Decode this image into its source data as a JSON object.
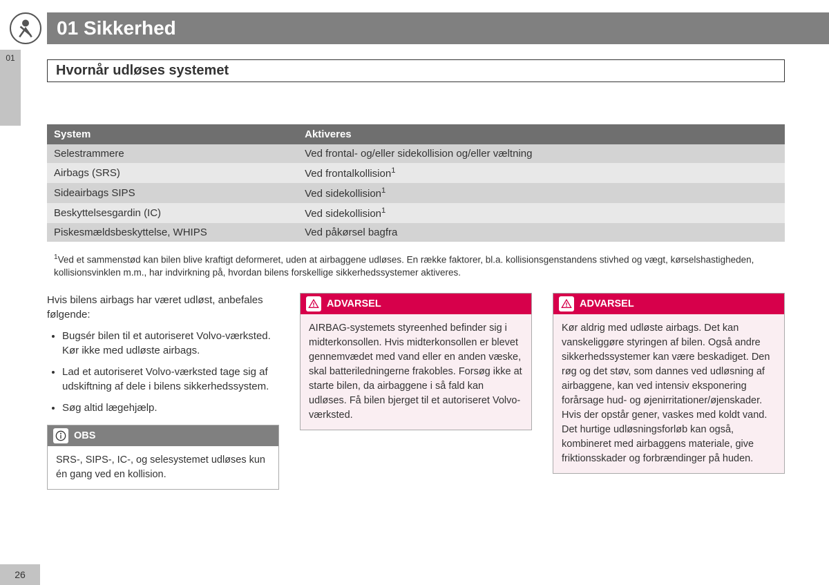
{
  "chapter": {
    "number": "01",
    "title": "Sikkerhed",
    "tab_label": "01"
  },
  "section_title": "Hvornår udløses systemet",
  "page_number": "26",
  "table": {
    "columns": [
      "System",
      "Aktiveres"
    ],
    "rows": [
      {
        "system": "Selestrammere",
        "activates": "Ved frontal- og/eller sidekollision og/eller væltning",
        "fn": false
      },
      {
        "system": "Airbags (SRS)",
        "activates": "Ved frontalkollision",
        "fn": true
      },
      {
        "system": "Sideairbags SIPS",
        "activates": "Ved sidekollision",
        "fn": true
      },
      {
        "system": "Beskyttelsesgardin (IC)",
        "activates": "Ved sidekollision",
        "fn": true
      },
      {
        "system": "Piskesmældsbeskyttelse, WHIPS",
        "activates": "Ved påkørsel bagfra",
        "fn": false
      }
    ],
    "header_bg": "#6f6f6f",
    "row_odd_bg": "#d3d3d3",
    "row_even_bg": "#e8e8e8"
  },
  "footnote": {
    "marker": "1",
    "text": "Ved et sammenstød kan bilen blive kraftigt deformeret, uden at airbaggene udløses. En række faktorer, bl.a. kollisionsgenstandens stivhed og vægt, kørselshastigheden, kollisionsvinklen m.m., har indvirkning på, hvordan bilens forskellige sikkerhedssystemer aktiveres."
  },
  "col1": {
    "intro": "Hvis bilens airbags har været udløst, anbefales følgende:",
    "bullets": [
      "Bugsér bilen til et autoriseret Volvo-værksted. Kør ikke med udløste airbags.",
      "Lad et autoriseret Volvo-værksted tage sig af udskiftning af dele i bilens sikkerhedssystem.",
      "Søg altid lægehjælp."
    ],
    "obs": {
      "title": "OBS",
      "body": "SRS-, SIPS-, IC-, og selesystemet udløses kun én gang ved en kollision."
    }
  },
  "col2": {
    "warn": {
      "title": "ADVARSEL",
      "body": "AIRBAG-systemets styreenhed befinder sig i midterkonsollen. Hvis midterkonsollen er blevet gennemvædet med vand eller en anden væske, skal batteriledningerne frakobles. Forsøg ikke at starte bilen, da airbaggene i så fald kan udløses. Få bilen bjerget til et autoriseret Volvo-værksted."
    }
  },
  "col3": {
    "warn": {
      "title": "ADVARSEL",
      "body": "Kør aldrig med udløste airbags. Det kan vanskeliggøre styringen af bilen. Også andre sikkerhedssystemer kan være beskadiget. Den røg og det støv, som dannes ved udløsning af airbaggene, kan ved intensiv eksponering forårsage hud- og øjenirritationer/øjenskader. Hvis der opstår gener, vaskes med koldt vand. Det hurtige udløsningsforløb kan også, kombineret med airbaggens materiale, give friktionsskader og forbrændinger på huden."
    }
  },
  "colors": {
    "chapter_bar": "#808080",
    "warn_bg": "#d7004b",
    "warn_body_bg": "#faeef2",
    "obs_bg": "#808080",
    "tab_bg": "#c3c3c3"
  }
}
